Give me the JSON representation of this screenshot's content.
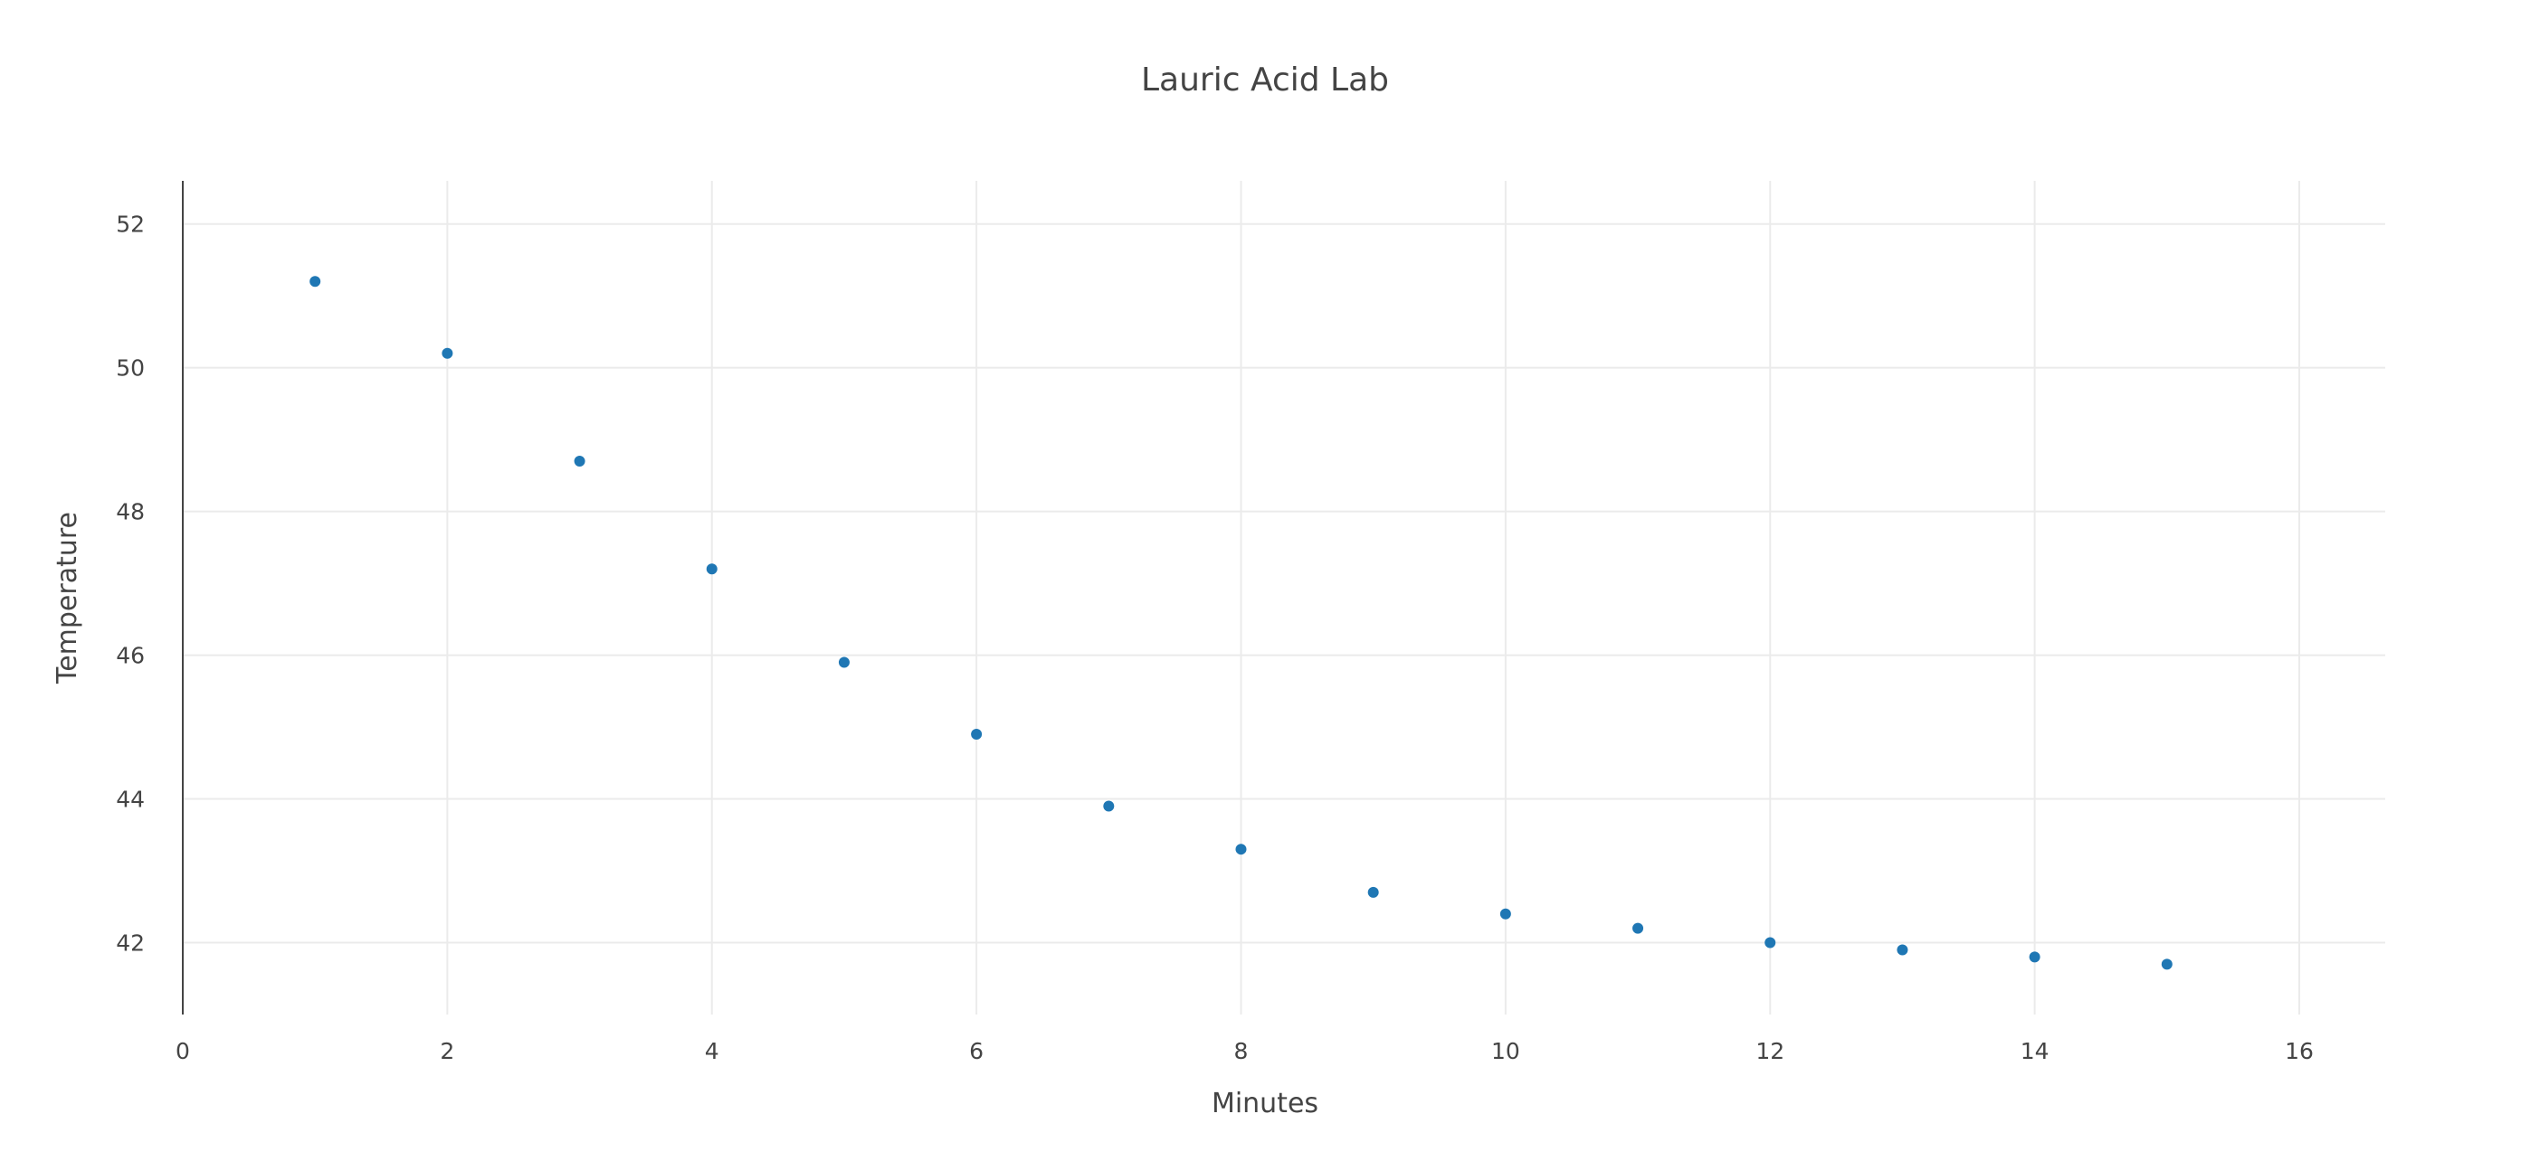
{
  "chart_data": {
    "type": "scatter",
    "title": "Lauric Acid Lab",
    "xlabel": "Minutes",
    "ylabel": "Temperature",
    "xlim": [
      0,
      16.65
    ],
    "ylim": [
      41.0,
      52.6
    ],
    "x_ticks": [
      0,
      2,
      4,
      6,
      8,
      10,
      12,
      14,
      16
    ],
    "y_ticks": [
      42,
      44,
      46,
      48,
      50,
      52
    ],
    "grid": true,
    "series": [
      {
        "color": "#1f77b4",
        "x": [
          1,
          2,
          3,
          4,
          5,
          6,
          7,
          8,
          9,
          10,
          11,
          12,
          13,
          14,
          15
        ],
        "y": [
          51.2,
          50.2,
          48.7,
          47.2,
          45.9,
          44.9,
          43.9,
          43.3,
          42.7,
          42.4,
          42.2,
          42.0,
          41.9,
          41.8,
          41.7
        ]
      }
    ]
  }
}
